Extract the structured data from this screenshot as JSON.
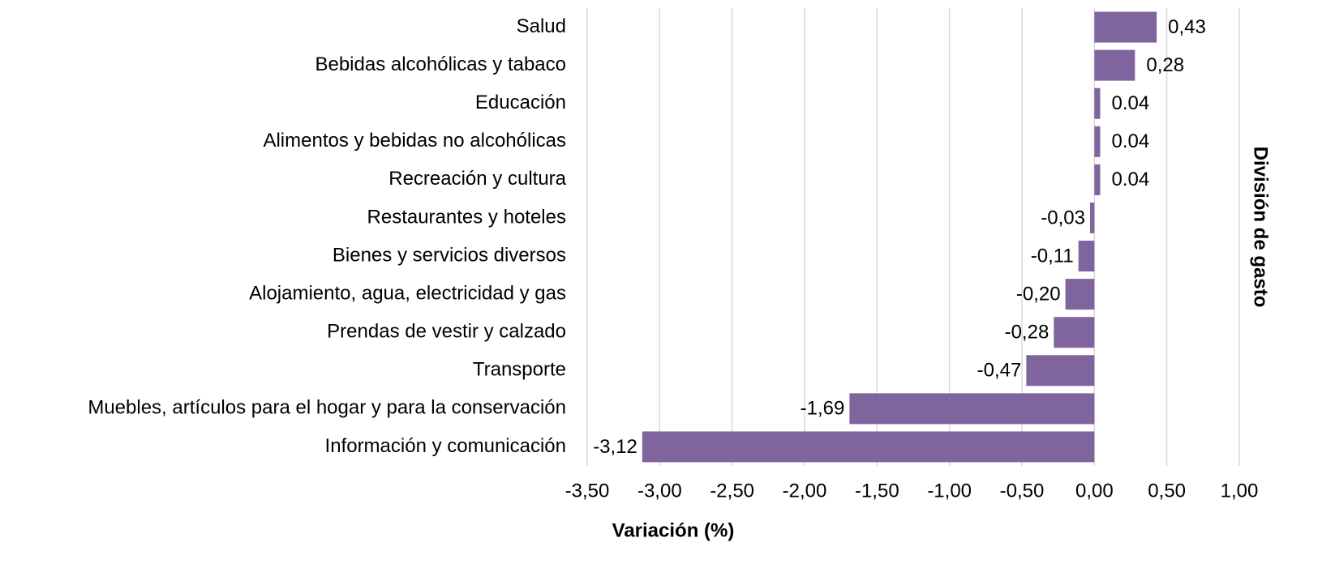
{
  "chart_data": {
    "type": "barh",
    "xlabel": "Variación (%)",
    "ylabel": "División de gasto",
    "categories": [
      "Salud",
      "Bebidas alcohólicas y tabaco",
      "Educación",
      "Alimentos y bebidas no alcohólicas",
      "Recreación y cultura",
      "Restaurantes y hoteles",
      "Bienes y servicios diversos",
      "Alojamiento, agua, electricidad y gas",
      "Prendas de vestir y calzado",
      "Transporte",
      "Muebles, artículos para el hogar y para la conservación",
      "Información y comunicación"
    ],
    "values": [
      0.43,
      0.28,
      0.04,
      0.04,
      0.04,
      -0.03,
      -0.11,
      -0.2,
      -0.28,
      -0.47,
      -1.69,
      -3.12
    ],
    "value_labels": [
      "0,43",
      "0,28",
      "0.04",
      "0.04",
      "0.04",
      "-0,03",
      "-0,11",
      "-0,20",
      "-0,28",
      "-0,47",
      "-1,69",
      "-3,12"
    ],
    "color": "#7f649e",
    "xlim": [
      -3.5,
      1.0
    ],
    "xticks": [
      {
        "value": -3.5,
        "label": "-3,50"
      },
      {
        "value": -3.0,
        "label": "-3,00"
      },
      {
        "value": -2.5,
        "label": "-2,50"
      },
      {
        "value": -2.0,
        "label": "-2,00"
      },
      {
        "value": -1.5,
        "label": "-1,50"
      },
      {
        "value": -1.0,
        "label": "-1,00"
      },
      {
        "value": -0.5,
        "label": "-0,50"
      },
      {
        "value": 0.0,
        "label": "0,00"
      },
      {
        "value": 0.5,
        "label": "0,50"
      },
      {
        "value": 1.0,
        "label": "1,00"
      }
    ],
    "grid": true
  }
}
